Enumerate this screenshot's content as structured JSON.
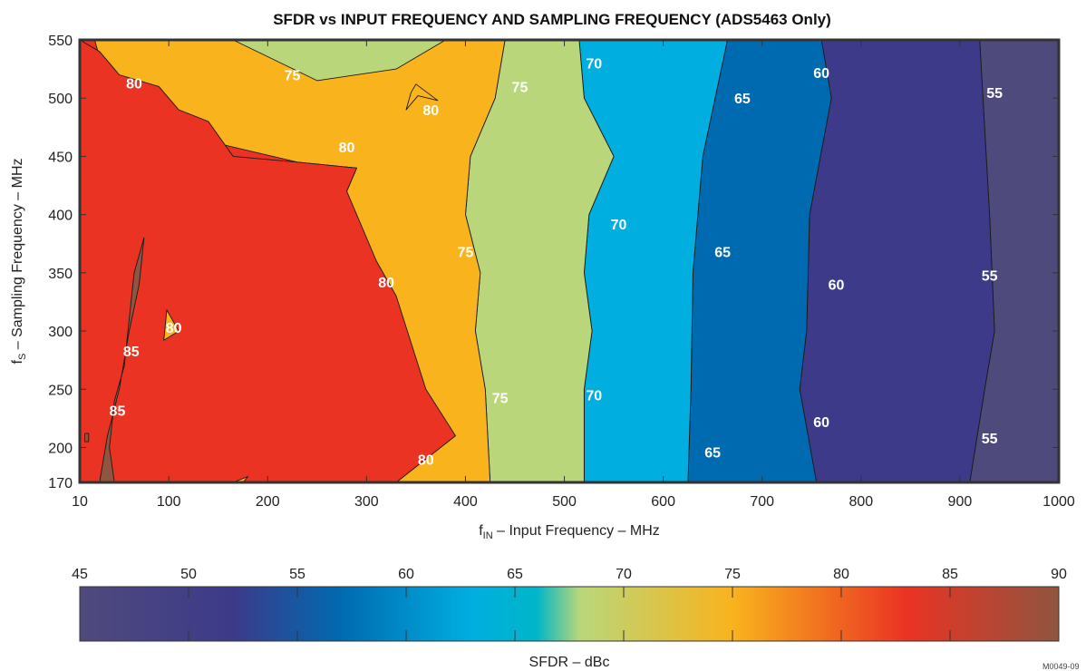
{
  "chart_data": {
    "type": "contour",
    "title": "SFDR vs INPUT FREQUENCY AND SAMPLING FREQUENCY (ADS5463 Only)",
    "xlabel": {
      "main": "f",
      "sub": "IN",
      "rest": " – Input Frequency – MHz"
    },
    "ylabel": {
      "main": "f",
      "sub": "S",
      "rest": " – Sampling Frequency – MHz"
    },
    "xlim": [
      10,
      1000
    ],
    "ylim": [
      170,
      550
    ],
    "x_ticks": [
      10,
      100,
      200,
      300,
      400,
      500,
      600,
      700,
      800,
      900,
      1000
    ],
    "y_ticks": [
      170,
      200,
      250,
      300,
      350,
      400,
      450,
      500,
      550
    ],
    "contour_levels": [
      55,
      60,
      65,
      70,
      75,
      80,
      85
    ],
    "regions": [
      {
        "name": "sfdr-50-55",
        "color": "#4f4a7c",
        "points": [
          [
            910,
            170
          ],
          [
            1000,
            170
          ],
          [
            1000,
            550
          ],
          [
            920,
            550
          ],
          [
            930,
            400
          ],
          [
            935,
            300
          ],
          [
            925,
            250
          ]
        ]
      },
      {
        "name": "sfdr-55-60",
        "color": "#3d3a8a",
        "points": [
          [
            755,
            170
          ],
          [
            910,
            170
          ],
          [
            925,
            250
          ],
          [
            935,
            300
          ],
          [
            930,
            400
          ],
          [
            920,
            550
          ],
          [
            760,
            550
          ],
          [
            770,
            500
          ],
          [
            748,
            400
          ],
          [
            745,
            300
          ],
          [
            738,
            250
          ]
        ]
      },
      {
        "name": "sfdr-60-65",
        "color": "#006ab0",
        "points": [
          [
            625,
            170
          ],
          [
            755,
            170
          ],
          [
            738,
            250
          ],
          [
            745,
            300
          ],
          [
            748,
            400
          ],
          [
            770,
            500
          ],
          [
            760,
            550
          ],
          [
            665,
            550
          ],
          [
            640,
            450
          ],
          [
            630,
            350
          ],
          [
            628,
            250
          ]
        ]
      },
      {
        "name": "sfdr-65-70",
        "color": "#00aee0",
        "points": [
          [
            520,
            170
          ],
          [
            625,
            170
          ],
          [
            628,
            250
          ],
          [
            630,
            350
          ],
          [
            640,
            450
          ],
          [
            665,
            550
          ],
          [
            515,
            550
          ],
          [
            520,
            500
          ],
          [
            550,
            450
          ],
          [
            525,
            400
          ],
          [
            520,
            350
          ],
          [
            528,
            300
          ],
          [
            520,
            250
          ]
        ]
      },
      {
        "name": "sfdr-70-75",
        "color": "#b9d77a",
        "points": [
          [
            425,
            170
          ],
          [
            520,
            170
          ],
          [
            520,
            250
          ],
          [
            528,
            300
          ],
          [
            520,
            350
          ],
          [
            525,
            400
          ],
          [
            550,
            450
          ],
          [
            520,
            500
          ],
          [
            515,
            550
          ],
          [
            440,
            550
          ],
          [
            430,
            500
          ],
          [
            405,
            450
          ],
          [
            400,
            400
          ],
          [
            415,
            350
          ],
          [
            410,
            300
          ],
          [
            420,
            250
          ]
        ]
      },
      {
        "name": "sfdr-75-80",
        "color": "#f9b31d",
        "points": [
          [
            330,
            170
          ],
          [
            425,
            170
          ],
          [
            420,
            250
          ],
          [
            410,
            300
          ],
          [
            415,
            350
          ],
          [
            400,
            400
          ],
          [
            405,
            450
          ],
          [
            430,
            500
          ],
          [
            440,
            550
          ],
          [
            25,
            550
          ],
          [
            35,
            520
          ],
          [
            80,
            500
          ],
          [
            110,
            480
          ],
          [
            155,
            460
          ],
          [
            230,
            445
          ],
          [
            290,
            440
          ],
          [
            280,
            420
          ],
          [
            260,
            400
          ],
          [
            245,
            390
          ],
          [
            230,
            380
          ],
          [
            220,
            370
          ],
          [
            210,
            360
          ],
          [
            200,
            330
          ],
          [
            185,
            280
          ],
          [
            150,
            230
          ],
          [
            100,
            170
          ]
        ]
      },
      {
        "name": "sfdr-80-85",
        "color": "#ea3323",
        "points": [
          [
            10,
            170
          ],
          [
            330,
            170
          ],
          [
            390,
            210
          ],
          [
            360,
            250
          ],
          [
            330,
            330
          ],
          [
            310,
            360
          ],
          [
            280,
            420
          ],
          [
            290,
            440
          ],
          [
            230,
            445
          ],
          [
            165,
            450
          ],
          [
            140,
            480
          ],
          [
            110,
            490
          ],
          [
            90,
            510
          ],
          [
            50,
            520
          ],
          [
            30,
            540
          ],
          [
            10,
            550
          ]
        ]
      },
      {
        "name": "sfdr-85-90-a",
        "color": "#8f5540",
        "points": [
          [
            30,
            170
          ],
          [
            45,
            170
          ],
          [
            40,
            200
          ],
          [
            45,
            240
          ],
          [
            55,
            270
          ],
          [
            60,
            310
          ],
          [
            65,
            350
          ],
          [
            75,
            380
          ],
          [
            70,
            340
          ],
          [
            60,
            300
          ],
          [
            50,
            250
          ],
          [
            38,
            210
          ]
        ]
      },
      {
        "name": "sfdr-85-90-b",
        "color": "#8f5540",
        "points": [
          [
            15,
            205
          ],
          [
            19,
            205
          ],
          [
            19,
            212
          ],
          [
            15,
            212
          ]
        ]
      },
      {
        "name": "sfdr-75-80-pocket-a",
        "color": "#f9b31d",
        "points": [
          [
            95,
            292
          ],
          [
            110,
            300
          ],
          [
            98,
            318
          ]
        ]
      },
      {
        "name": "sfdr-75-80-pocket-b",
        "color": "#f9b31d",
        "points": [
          [
            165,
            170
          ],
          [
            180,
            175
          ],
          [
            175,
            170
          ]
        ]
      },
      {
        "name": "sfdr-75-80-island",
        "color": "#f9b31d",
        "points": [
          [
            340,
            490
          ],
          [
            352,
            502
          ],
          [
            372,
            498
          ],
          [
            350,
            512
          ],
          [
            345,
            505
          ]
        ]
      },
      {
        "name": "sfdr-70-75-top",
        "color": "#b9d77a",
        "points": [
          [
            165,
            550
          ],
          [
            380,
            550
          ],
          [
            330,
            525
          ],
          [
            250,
            515
          ]
        ]
      }
    ],
    "contour_labels": [
      {
        "text": "80",
        "x": 65,
        "y": 513
      },
      {
        "text": "75",
        "x": 225,
        "y": 520
      },
      {
        "text": "80",
        "x": 365,
        "y": 490
      },
      {
        "text": "75",
        "x": 455,
        "y": 510
      },
      {
        "text": "70",
        "x": 530,
        "y": 530
      },
      {
        "text": "65",
        "x": 680,
        "y": 500
      },
      {
        "text": "60",
        "x": 760,
        "y": 522
      },
      {
        "text": "55",
        "x": 935,
        "y": 505
      },
      {
        "text": "80",
        "x": 280,
        "y": 458
      },
      {
        "text": "70",
        "x": 555,
        "y": 392
      },
      {
        "text": "75",
        "x": 400,
        "y": 368
      },
      {
        "text": "65",
        "x": 660,
        "y": 368
      },
      {
        "text": "80",
        "x": 320,
        "y": 342
      },
      {
        "text": "60",
        "x": 775,
        "y": 340
      },
      {
        "text": "55",
        "x": 930,
        "y": 348
      },
      {
        "text": "80",
        "x": 105,
        "y": 303
      },
      {
        "text": "85",
        "x": 62,
        "y": 283
      },
      {
        "text": "85",
        "x": 48,
        "y": 232
      },
      {
        "text": "75",
        "x": 435,
        "y": 243
      },
      {
        "text": "70",
        "x": 530,
        "y": 245
      },
      {
        "text": "60",
        "x": 760,
        "y": 222
      },
      {
        "text": "55",
        "x": 930,
        "y": 208
      },
      {
        "text": "65",
        "x": 650,
        "y": 196
      },
      {
        "text": "80",
        "x": 360,
        "y": 190
      }
    ],
    "colorbar": {
      "range": [
        45,
        90
      ],
      "ticks": [
        45,
        50,
        55,
        60,
        65,
        70,
        75,
        80,
        85,
        90
      ],
      "stops": [
        {
          "v": 45,
          "c": "#4f4a7c"
        },
        {
          "v": 52,
          "c": "#3d3a8a"
        },
        {
          "v": 57,
          "c": "#006ab0"
        },
        {
          "v": 63,
          "c": "#00aee0"
        },
        {
          "v": 66,
          "c": "#00b5c8"
        },
        {
          "v": 68,
          "c": "#b9d77a"
        },
        {
          "v": 75,
          "c": "#f9b31d"
        },
        {
          "v": 83,
          "c": "#ea3323"
        },
        {
          "v": 90,
          "c": "#8f5540"
        }
      ],
      "label": "SFDR – dBc"
    },
    "figure_code": "M0049-09"
  }
}
